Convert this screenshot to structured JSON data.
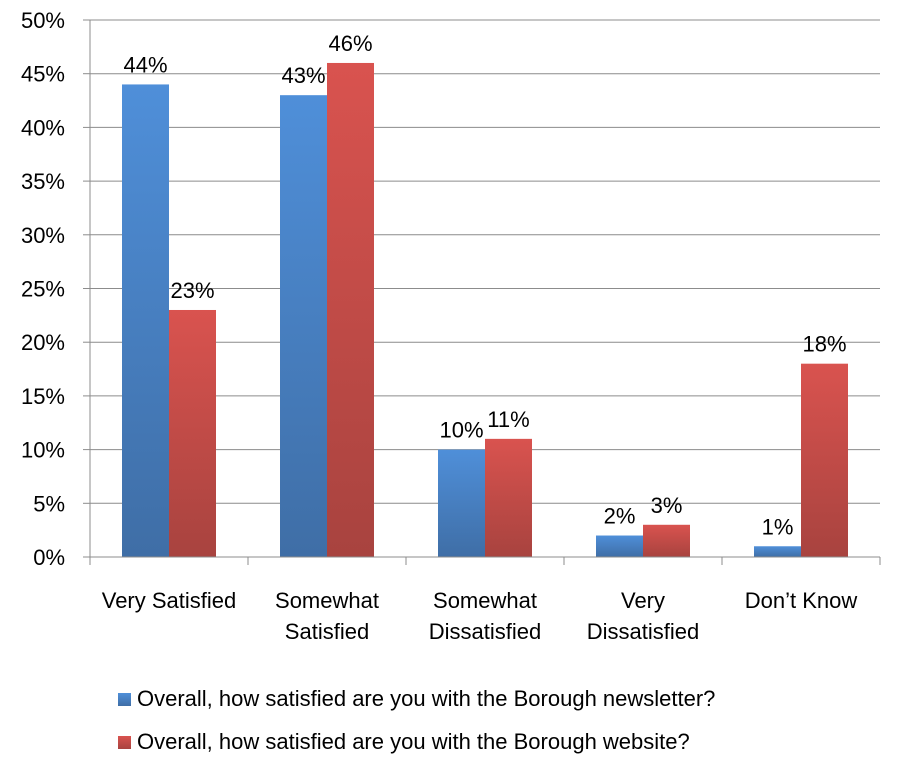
{
  "chart_data": {
    "type": "bar",
    "categories": [
      [
        "Very Satisfied"
      ],
      [
        "Somewhat",
        "Satisfied"
      ],
      [
        "Somewhat",
        "Dissatisfied"
      ],
      [
        "Very",
        "Dissatisfied"
      ],
      [
        "Don’t Know"
      ]
    ],
    "series": [
      {
        "name": "Overall, how satisfied are you with the Borough newsletter?",
        "values": [
          44,
          43,
          10,
          2,
          1
        ],
        "labels": [
          "44%",
          "43%",
          "10%",
          "2%",
          "1%"
        ],
        "color": "#4a7ebb"
      },
      {
        "name": "Overall, how satisfied are you with the Borough website?",
        "values": [
          23,
          46,
          11,
          3,
          18
        ],
        "labels": [
          "23%",
          "46%",
          "11%",
          "3%",
          "18%"
        ],
        "color": "#be4b48"
      }
    ],
    "ylim": [
      0,
      50
    ],
    "yticks": [
      "0%",
      "5%",
      "10%",
      "15%",
      "20%",
      "25%",
      "30%",
      "35%",
      "40%",
      "45%",
      "50%"
    ],
    "grid": true,
    "legend_position": "bottom"
  }
}
